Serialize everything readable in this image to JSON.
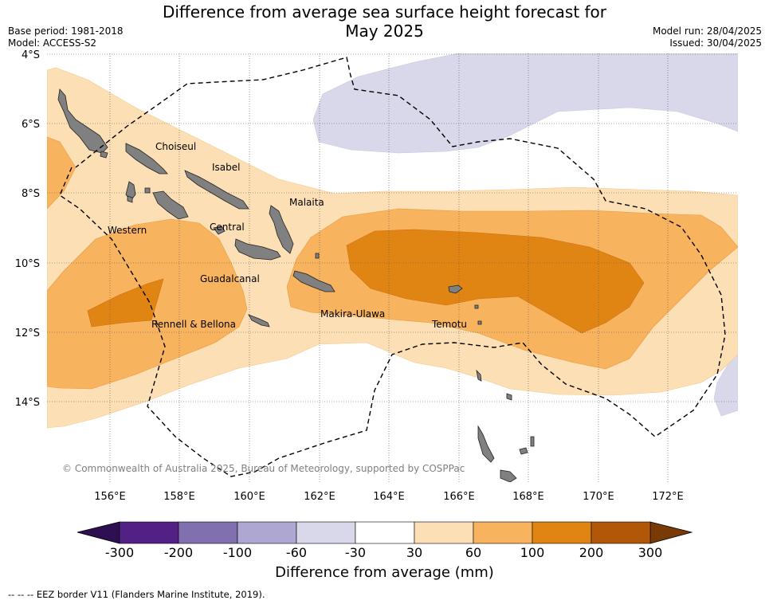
{
  "header": {
    "title_line1": "Difference from average sea surface height forecast for",
    "title_line2": "May 2025",
    "base_period": "Base period: 1981-2018",
    "model": "Model: ACCESS-S2",
    "model_run": "Model run: 28/04/2025",
    "issued": "Issued: 30/04/2025"
  },
  "map": {
    "lat_labels": [
      "4°S",
      "6°S",
      "8°S",
      "10°S",
      "12°S",
      "14°S"
    ],
    "lon_labels": [
      "156°E",
      "158°E",
      "160°E",
      "162°E",
      "164°E",
      "166°E",
      "168°E",
      "170°E",
      "172°E"
    ],
    "places": [
      "Choiseul",
      "Isabel",
      "Malaita",
      "Western",
      "Central",
      "Guadalcanal",
      "Makira-Ulawa",
      "Temotu",
      "Rennell & Bellona"
    ],
    "copyright": "© Commonwealth of Australia 2025, Bureau of Meteorology, supported by COSPPac"
  },
  "colorbar": {
    "title": "Difference from average (mm)",
    "ticks": [
      "-300",
      "-200",
      "-100",
      "-60",
      "-30",
      "30",
      "60",
      "100",
      "200",
      "300"
    ],
    "colors": [
      "#2d0f52",
      "#532186",
      "#8070af",
      "#aea7d2",
      "#d8d8ea",
      "#ffffff",
      "#fddfb5",
      "#f8b35e",
      "#e08514",
      "#b25708",
      "#7a3a05"
    ]
  },
  "footnote": "--  --  -- EEZ border V11 (Flanders Marine Institute, 2019)."
}
